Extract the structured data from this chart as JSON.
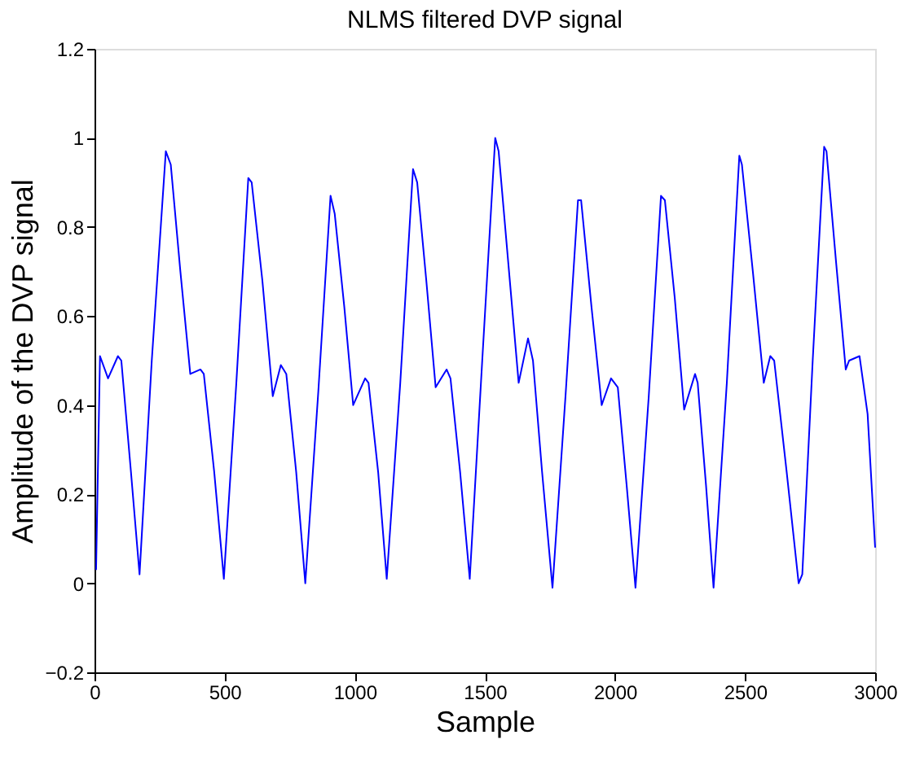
{
  "chart_data": {
    "type": "line",
    "title": "NLMS filtered DVP signal",
    "xlabel": "Sample",
    "ylabel": "Amplitude of the DVP signal",
    "xlim": [
      0,
      3000
    ],
    "xticks": [
      0,
      500,
      1000,
      1500,
      2000,
      2500,
      3000
    ],
    "ylim": [
      -0.2,
      1.2
    ],
    "yticks": [
      -0.2,
      0,
      0.2,
      0.4,
      0.6,
      0.8,
      1,
      1.2
    ],
    "grid": false,
    "legend": false,
    "marker": "none",
    "line_style": "solid",
    "series": [
      {
        "color": "#0000ff",
        "x": [
          6,
          21,
          52,
          90,
          103,
          140,
          173,
          220,
          274,
          293,
          330,
          368,
          407,
          420,
          460,
          497,
          545,
          591,
          604,
          645,
          685,
          716,
          737,
          775,
          810,
          860,
          907,
          923,
          960,
          994,
          1040,
          1053,
          1090,
          1123,
          1175,
          1224,
          1240,
          1275,
          1311,
          1353,
          1368,
          1405,
          1442,
          1490,
          1540,
          1553,
          1590,
          1630,
          1666,
          1685,
          1720,
          1760,
          1810,
          1858,
          1870,
          1910,
          1949,
          1985,
          2011,
          2045,
          2079,
          2130,
          2177,
          2192,
          2230,
          2266,
          2308,
          2318,
          2350,
          2379,
          2430,
          2478,
          2488,
          2530,
          2572,
          2597,
          2612,
          2660,
          2706,
          2720,
          2760,
          2804,
          2813,
          2850,
          2887,
          2900,
          2940,
          2971,
          3000
        ],
        "values": [
          0.03,
          0.51,
          0.46,
          0.51,
          0.5,
          0.25,
          0.02,
          0.5,
          0.97,
          0.94,
          0.7,
          0.47,
          0.48,
          0.47,
          0.25,
          0.01,
          0.45,
          0.91,
          0.9,
          0.68,
          0.42,
          0.49,
          0.47,
          0.25,
          0.0,
          0.43,
          0.87,
          0.83,
          0.62,
          0.4,
          0.46,
          0.45,
          0.25,
          0.01,
          0.45,
          0.93,
          0.9,
          0.68,
          0.44,
          0.48,
          0.46,
          0.25,
          0.01,
          0.5,
          1.0,
          0.97,
          0.72,
          0.45,
          0.55,
          0.5,
          0.25,
          -0.01,
          0.42,
          0.86,
          0.86,
          0.62,
          0.4,
          0.46,
          0.44,
          0.22,
          -0.01,
          0.42,
          0.87,
          0.86,
          0.64,
          0.39,
          0.47,
          0.45,
          0.22,
          -0.01,
          0.45,
          0.96,
          0.94,
          0.7,
          0.45,
          0.51,
          0.5,
          0.25,
          0.0,
          0.02,
          0.5,
          0.98,
          0.97,
          0.72,
          0.48,
          0.5,
          0.51,
          0.38,
          0.08
        ]
      }
    ]
  }
}
